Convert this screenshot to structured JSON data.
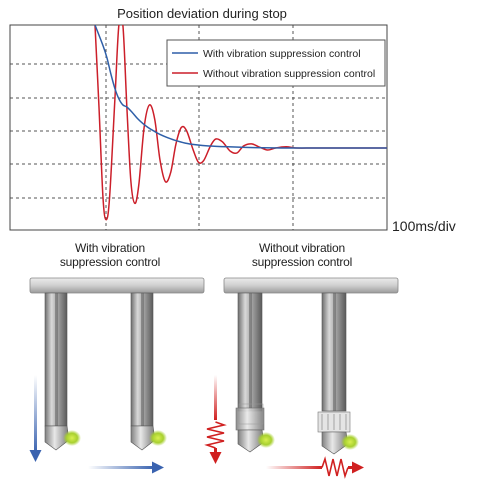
{
  "chart_data": {
    "type": "line",
    "title": "Position deviation during stop",
    "x_scale_label": "100ms/div",
    "grid": true,
    "legend_position": "top-right",
    "series": [
      {
        "name": "With vibration suppression control",
        "color": "#2f5fa8",
        "points": [
          [
            0,
            3.0
          ],
          [
            0.3,
            2.5
          ],
          [
            0.45,
            2.2
          ],
          [
            0.6,
            1.8
          ],
          [
            0.75,
            1.45
          ],
          [
            0.9,
            1.2
          ],
          [
            1.05,
            1.05
          ],
          [
            1.2,
            1.0
          ],
          [
            1.4,
            0.87
          ],
          [
            1.6,
            0.72
          ],
          [
            1.8,
            0.6
          ],
          [
            2.0,
            0.5
          ],
          [
            2.2,
            0.42
          ],
          [
            2.45,
            0.33
          ],
          [
            2.7,
            0.26
          ],
          [
            3.0,
            0.19
          ],
          [
            3.4,
            0.12
          ],
          [
            3.8,
            0.08
          ],
          [
            4.3,
            0.05
          ],
          [
            5.0,
            0.03
          ],
          [
            6.0,
            0.01
          ],
          [
            7.0,
            0.0
          ],
          [
            8.0,
            0.0
          ],
          [
            9.0,
            0.0
          ],
          [
            10.0,
            0.0
          ],
          [
            11.0,
            0.0
          ]
        ]
      },
      {
        "name": "Without vibration suppression control",
        "color": "#cc1f2a",
        "points": [
          [
            0,
            3.0
          ],
          [
            0.15,
            1.0
          ],
          [
            0.3,
            -1.2
          ],
          [
            0.42,
            -1.75
          ],
          [
            0.55,
            -1.2
          ],
          [
            0.75,
            1.2
          ],
          [
            0.9,
            3.0
          ],
          [
            1.05,
            3.0
          ],
          [
            1.2,
            1.0
          ],
          [
            1.35,
            -0.8
          ],
          [
            1.5,
            -1.35
          ],
          [
            1.65,
            -0.9
          ],
          [
            1.85,
            0.5
          ],
          [
            2.05,
            1.05
          ],
          [
            2.25,
            0.7
          ],
          [
            2.45,
            -0.3
          ],
          [
            2.65,
            -0.82
          ],
          [
            2.85,
            -0.6
          ],
          [
            3.05,
            0.1
          ],
          [
            3.25,
            0.5
          ],
          [
            3.45,
            0.42
          ],
          [
            3.7,
            -0.05
          ],
          [
            3.9,
            -0.35
          ],
          [
            4.1,
            -0.3
          ],
          [
            4.35,
            0.05
          ],
          [
            4.55,
            0.22
          ],
          [
            4.8,
            0.15
          ],
          [
            5.1,
            -0.08
          ],
          [
            5.35,
            -0.12
          ],
          [
            5.6,
            0.05
          ],
          [
            5.9,
            0.1
          ],
          [
            6.2,
            0.02
          ],
          [
            6.5,
            -0.05
          ],
          [
            6.8,
            0.0
          ],
          [
            7.2,
            0.03
          ],
          [
            7.6,
            0.0
          ],
          [
            8.2,
            0.0
          ],
          [
            9.0,
            0.0
          ],
          [
            10.0,
            0.0
          ],
          [
            11.0,
            0.0
          ]
        ]
      }
    ],
    "xlim": [
      0,
      11
    ],
    "ylim": [
      -2,
      3
    ]
  },
  "illustration": {
    "caption_with": [
      "With vibration",
      "suppression control"
    ],
    "caption_without": [
      "Without vibration",
      "suppression control"
    ],
    "colors": {
      "blue_arrow": "#3a63b0",
      "red_arrow": "#d02020",
      "rail": "#d8d8d8",
      "tool_body": "#b0b0b0",
      "tip_glow": "#a8d030"
    }
  }
}
